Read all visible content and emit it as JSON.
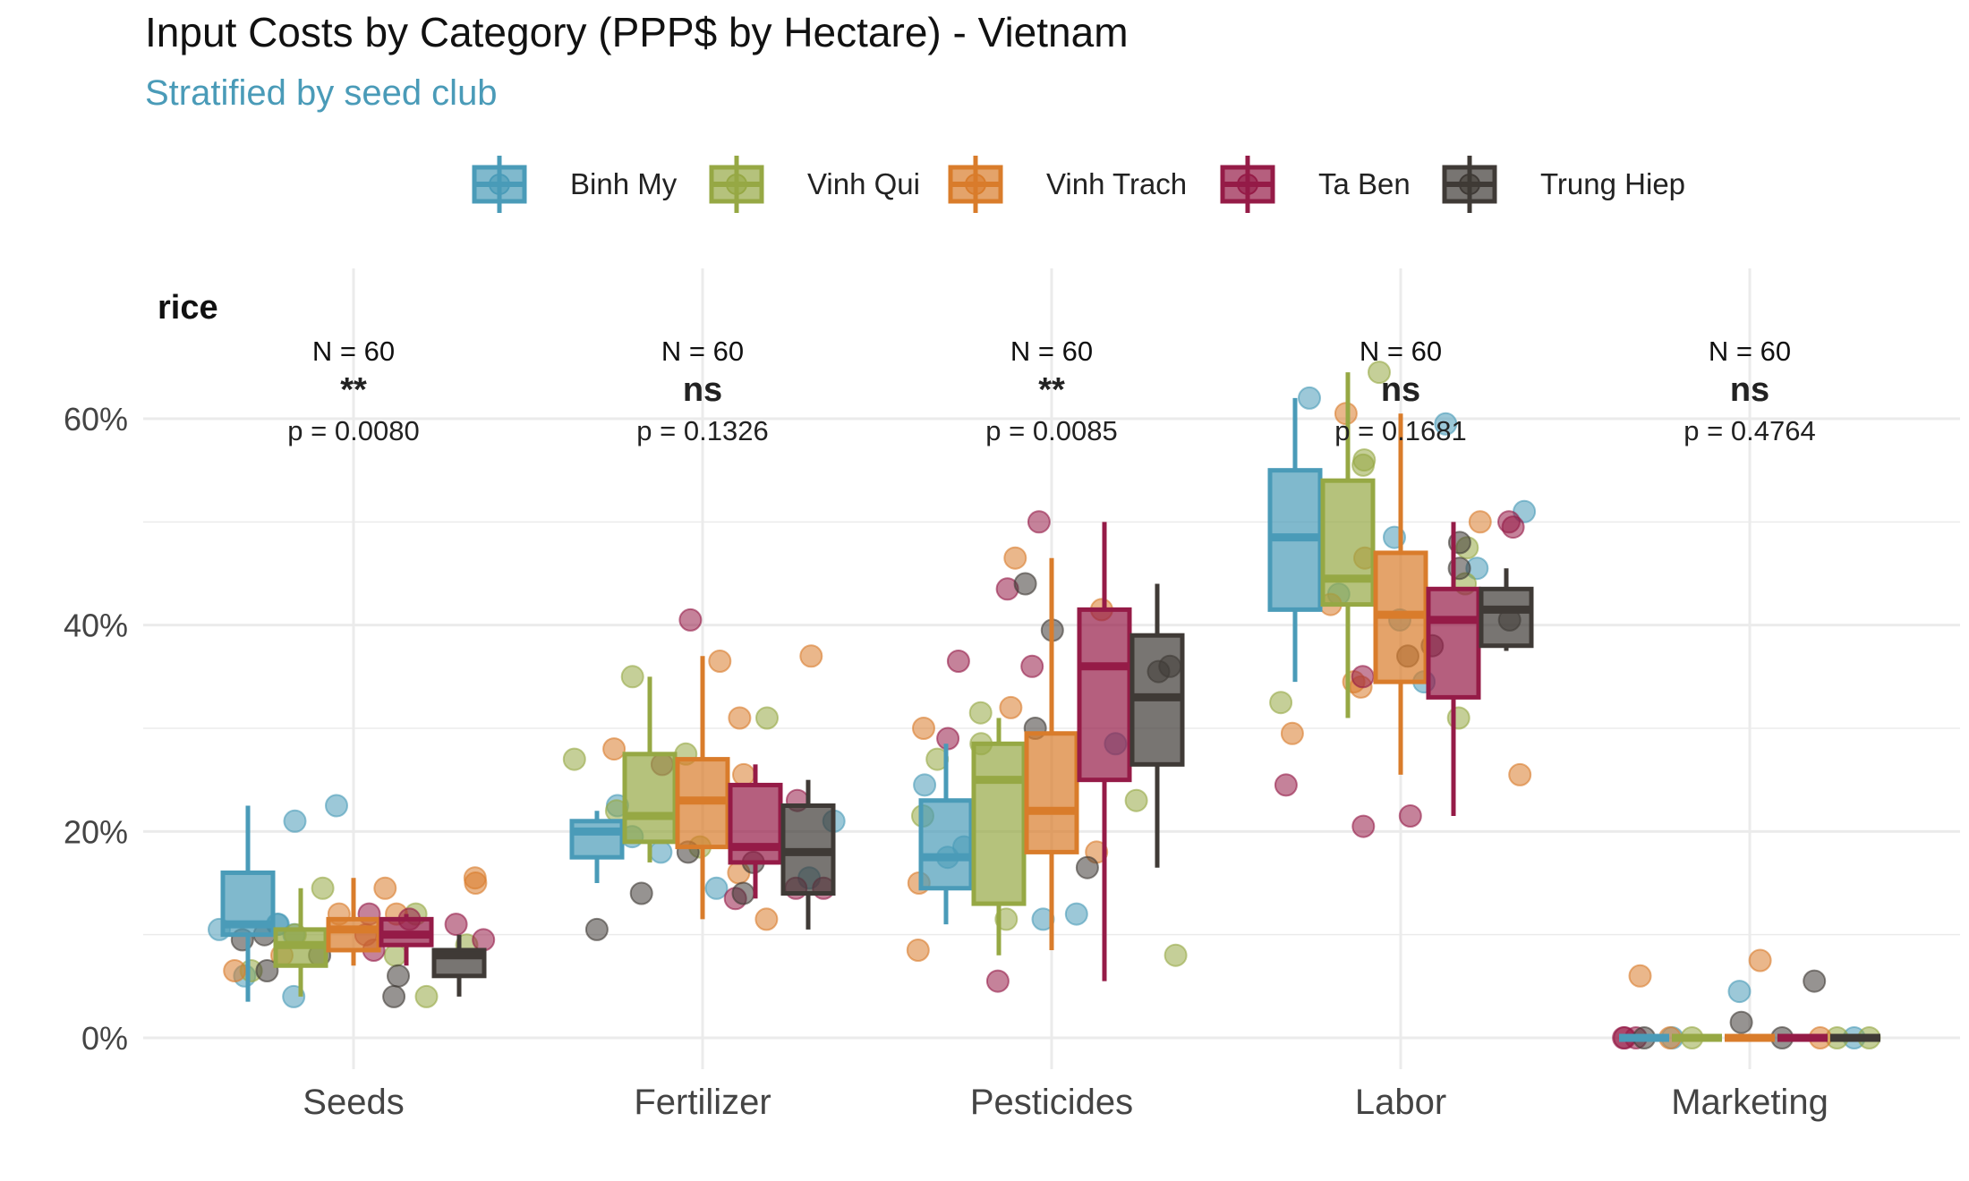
{
  "chart_data": {
    "type": "box",
    "title": "Input Costs by Category (PPP$ by Hectare) - Vietnam",
    "subtitle": "Stratified by seed club",
    "facet_label": "rice",
    "xlabel": "",
    "ylabel": "",
    "ylim": [
      -3,
      68
    ],
    "y_ticks": [
      0,
      20,
      40,
      60
    ],
    "y_tick_labels": [
      "0%",
      "20%",
      "40%",
      "60%"
    ],
    "grid": true,
    "legend_position": "top",
    "categories": [
      "Seeds",
      "Fertilizer",
      "Pesticides",
      "Labor",
      "Marketing"
    ],
    "series": [
      {
        "name": "Binh My",
        "color": "#4A9BB8",
        "boxes": [
          {
            "q1": 10,
            "median": 11,
            "q3": 16,
            "whisker_low": 3.5,
            "whisker_high": 22.5
          },
          {
            "q1": 17.5,
            "median": 20,
            "q3": 21,
            "whisker_low": 15,
            "whisker_high": 22
          },
          {
            "q1": 14.5,
            "median": 17.5,
            "q3": 23,
            "whisker_low": 11,
            "whisker_high": 28.5
          },
          {
            "q1": 41.5,
            "median": 48.5,
            "q3": 55,
            "whisker_low": 34.5,
            "whisker_high": 62
          },
          {
            "q1": 0,
            "median": 0,
            "q3": 0,
            "whisker_low": 0,
            "whisker_high": 0
          }
        ],
        "points": [
          [
            10.5,
            11,
            6,
            21,
            22.5,
            11,
            4,
            10
          ],
          [
            22.5,
            21,
            15.5,
            19.5,
            18,
            14.5
          ],
          [
            24.5,
            11.5,
            12,
            17.5,
            28.5,
            18.5
          ],
          [
            43,
            40.5,
            62,
            48.5,
            59.5,
            51,
            34.5,
            45.5
          ],
          [
            0,
            4.5,
            0
          ]
        ]
      },
      {
        "name": "Vinh Qui",
        "color": "#96A844",
        "boxes": [
          {
            "q1": 7,
            "median": 9,
            "q3": 10.5,
            "whisker_low": 4,
            "whisker_high": 14.5
          },
          {
            "q1": 19,
            "median": 21.5,
            "q3": 27.5,
            "whisker_low": 17,
            "whisker_high": 35
          },
          {
            "q1": 13,
            "median": 25,
            "q3": 28.5,
            "whisker_low": 8,
            "whisker_high": 31
          },
          {
            "q1": 42,
            "median": 44.5,
            "q3": 54,
            "whisker_low": 31,
            "whisker_high": 64.5
          },
          {
            "q1": 0,
            "median": 0,
            "q3": 0,
            "whisker_low": 0,
            "whisker_high": 0
          }
        ],
        "points": [
          [
            9,
            12,
            6.5,
            4,
            14.5,
            8,
            10
          ],
          [
            31,
            27.5,
            18.5,
            35,
            27,
            22
          ],
          [
            27,
            31.5,
            11.5,
            21.5,
            8,
            23,
            28.5
          ],
          [
            64.5,
            56,
            55.5,
            31,
            44,
            47.5,
            32.5
          ],
          [
            0,
            0,
            0
          ]
        ]
      },
      {
        "name": "Vinh Trach",
        "color": "#D97C2B",
        "boxes": [
          {
            "q1": 8.5,
            "median": 10.5,
            "q3": 11.5,
            "whisker_low": 7,
            "whisker_high": 15.5
          },
          {
            "q1": 18.5,
            "median": 23,
            "q3": 27,
            "whisker_low": 11.5,
            "whisker_high": 37
          },
          {
            "q1": 18,
            "median": 22,
            "q3": 29.5,
            "whisker_low": 8.5,
            "whisker_high": 46.5
          },
          {
            "q1": 34.5,
            "median": 41,
            "q3": 47,
            "whisker_low": 25.5,
            "whisker_high": 60.5
          },
          {
            "q1": 0,
            "median": 0,
            "q3": 0,
            "whisker_low": 0,
            "whisker_high": 0
          }
        ],
        "points": [
          [
            6.5,
            15,
            12,
            15.5,
            14.5,
            12,
            8
          ],
          [
            36.5,
            31,
            37,
            25.5,
            28,
            11.5,
            16
          ],
          [
            46.5,
            30,
            32,
            15,
            18,
            8.5,
            41.5
          ],
          [
            60.5,
            50,
            46.5,
            34,
            29.5,
            25.5,
            42,
            34.5
          ],
          [
            7.5,
            0,
            6,
            0
          ]
        ]
      },
      {
        "name": "Ta Ben",
        "color": "#951B47",
        "boxes": [
          {
            "q1": 9,
            "median": 10,
            "q3": 11.5,
            "whisker_low": 7,
            "whisker_high": 12
          },
          {
            "q1": 17,
            "median": 18.5,
            "q3": 24.5,
            "whisker_low": 13.5,
            "whisker_high": 26.5
          },
          {
            "q1": 25,
            "median": 36,
            "q3": 41.5,
            "whisker_low": 5.5,
            "whisker_high": 50
          },
          {
            "q1": 33,
            "median": 40.5,
            "q3": 43.5,
            "whisker_low": 21.5,
            "whisker_high": 50
          },
          {
            "q1": 0,
            "median": 0,
            "q3": 0,
            "whisker_low": 0,
            "whisker_high": 0
          }
        ],
        "points": [
          [
            12,
            11,
            8.5,
            10,
            11.5,
            9.5
          ],
          [
            40.5,
            14.5,
            23,
            26.5,
            13.5,
            14.5
          ],
          [
            43.5,
            5.5,
            36,
            50,
            29,
            36.5
          ],
          [
            50,
            20.5,
            24.5,
            35,
            21.5,
            49.5
          ],
          [
            0,
            0,
            0
          ]
        ]
      },
      {
        "name": "Trung Hiep",
        "color": "#3F3A36",
        "boxes": [
          {
            "q1": 6,
            "median": 8,
            "q3": 8.5,
            "whisker_low": 4,
            "whisker_high": 10
          },
          {
            "q1": 14,
            "median": 18,
            "q3": 22.5,
            "whisker_low": 10.5,
            "whisker_high": 25
          },
          {
            "q1": 26.5,
            "median": 33,
            "q3": 39,
            "whisker_low": 16.5,
            "whisker_high": 44
          },
          {
            "q1": 38,
            "median": 41.5,
            "q3": 43.5,
            "whisker_low": 37.5,
            "whisker_high": 45.5
          },
          {
            "q1": 0,
            "median": 0,
            "q3": 0,
            "whisker_low": 0,
            "whisker_high": 0
          }
        ],
        "points": [
          [
            8,
            9.5,
            6,
            10,
            4,
            6.5
          ],
          [
            14,
            14,
            10.5,
            17,
            18
          ],
          [
            36,
            44,
            30,
            35.5,
            16.5,
            39.5
          ],
          [
            38,
            40.5,
            37,
            48,
            45.5
          ],
          [
            0,
            1.5,
            5.5,
            0
          ]
        ]
      }
    ],
    "annotations": [
      {
        "category": "Seeds",
        "n": "N = 60",
        "sig": "**",
        "p": "p = 0.0080"
      },
      {
        "category": "Fertilizer",
        "n": "N = 60",
        "sig": "ns",
        "p": "p = 0.1326"
      },
      {
        "category": "Pesticides",
        "n": "N = 60",
        "sig": "**",
        "p": "p = 0.0085"
      },
      {
        "category": "Labor",
        "n": "N = 60",
        "sig": "ns",
        "p": "p = 0.1681"
      },
      {
        "category": "Marketing",
        "n": "N = 60",
        "sig": "ns",
        "p": "p = 0.4764"
      }
    ]
  },
  "colors": {
    "subtitle": "#4A9BB8",
    "grid": "#EBEBEB"
  }
}
